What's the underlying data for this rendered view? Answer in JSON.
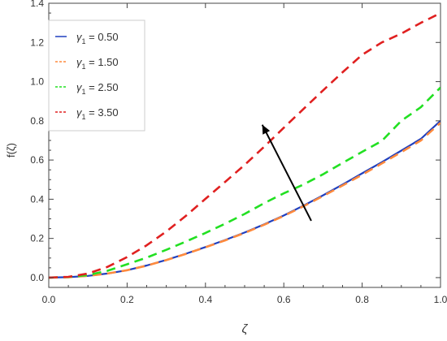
{
  "chart_data": {
    "type": "line",
    "xlabel": "ζ",
    "ylabel": "f(ζ)",
    "xlim": [
      0,
      1
    ],
    "ylim": [
      -0.05,
      1.4
    ],
    "xticks": [
      0.0,
      0.2,
      0.4,
      0.6,
      0.8,
      1.0
    ],
    "xtick_labels": [
      "0.0",
      "0.2",
      "0.4",
      "0.6",
      "0.8",
      "1.0"
    ],
    "yticks": [
      0.0,
      0.2,
      0.4,
      0.6,
      0.8,
      1.0,
      1.2,
      1.4
    ],
    "ytick_labels": [
      "0.0",
      "0.2",
      "0.4",
      "0.6",
      "0.8",
      "1.0",
      "1.2",
      "1.4"
    ],
    "grid": false,
    "legend_position": "top-left",
    "legend": {
      "symbol": "γ",
      "subscript": "1",
      "entries": [
        "= 0.50",
        "= 1.50",
        "= 2.50",
        "= 3.50"
      ]
    },
    "x": [
      0,
      0.05,
      0.1,
      0.15,
      0.2,
      0.25,
      0.3,
      0.35,
      0.4,
      0.45,
      0.5,
      0.55,
      0.6,
      0.65,
      0.7,
      0.75,
      0.8,
      0.85,
      0.9,
      0.95,
      1.0
    ],
    "series": [
      {
        "color": "#1f3fbf",
        "dash": "solid",
        "values": [
          0,
          0.002,
          0.009,
          0.021,
          0.038,
          0.062,
          0.09,
          0.122,
          0.156,
          0.192,
          0.23,
          0.272,
          0.317,
          0.367,
          0.42,
          0.475,
          0.532,
          0.589,
          0.648,
          0.708,
          0.8
        ]
      },
      {
        "color": "#ff8a3d",
        "dash": "dashed",
        "values": [
          0,
          0.002,
          0.009,
          0.021,
          0.038,
          0.061,
          0.089,
          0.121,
          0.155,
          0.19,
          0.228,
          0.27,
          0.315,
          0.364,
          0.416,
          0.47,
          0.525,
          0.582,
          0.64,
          0.7,
          0.79
        ]
      },
      {
        "color": "#22e022",
        "dash": "dashed",
        "values": [
          0,
          0.003,
          0.013,
          0.035,
          0.068,
          0.102,
          0.142,
          0.184,
          0.228,
          0.275,
          0.325,
          0.38,
          0.43,
          0.475,
          0.527,
          0.585,
          0.642,
          0.697,
          0.8,
          0.87,
          0.97
        ]
      },
      {
        "color": "#e02020",
        "dash": "dashed",
        "values": [
          0,
          0.004,
          0.021,
          0.055,
          0.105,
          0.165,
          0.235,
          0.315,
          0.402,
          0.488,
          0.575,
          0.668,
          0.765,
          0.86,
          0.955,
          1.048,
          1.137,
          1.2,
          1.245,
          1.3,
          1.35
        ]
      }
    ],
    "arrow": {
      "from": [
        0.67,
        0.29
      ],
      "to": [
        0.545,
        0.78
      ],
      "color": "#000000"
    }
  },
  "colors": {
    "axis": "#444444",
    "text": "#333333",
    "legend_border": "#cccccc"
  }
}
